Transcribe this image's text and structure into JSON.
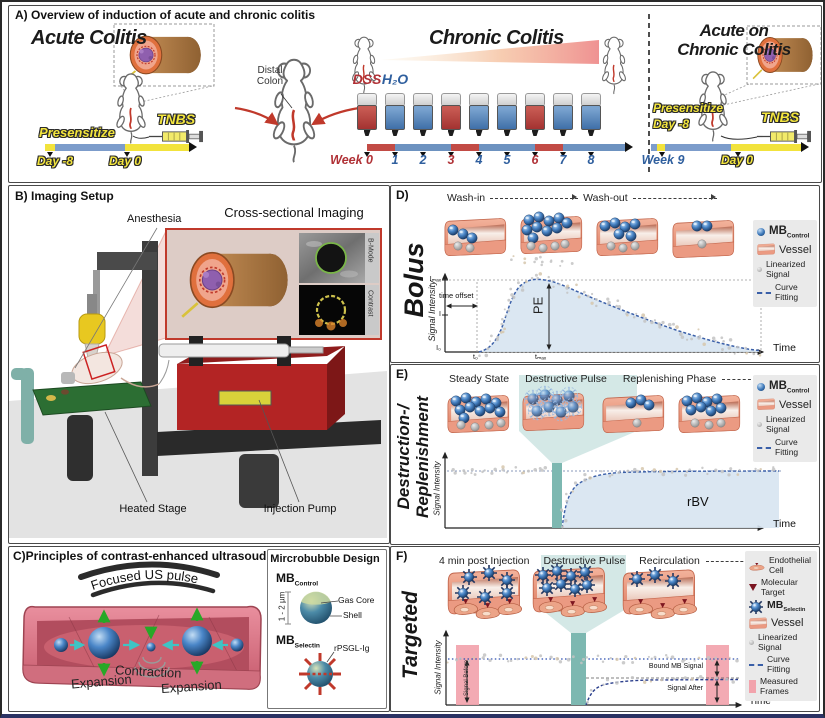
{
  "colors": {
    "dss_red": "#b13a38",
    "water_blue": "#4d7fb3",
    "timeline_yellow": "#f2e33c",
    "vessel_salmon": "#e89179",
    "microbubble_blue": "#2f6bb0",
    "pulse_teal": "#8fc3bd",
    "curve_blue": "#3a5fa8",
    "fill_blue": "#d7e4f1",
    "measured_pink": "#f2a3ac",
    "legend_gray": "#eaeaea"
  },
  "panelA": {
    "title": "A) Overview of induction of acute and chronic colitis",
    "acute": {
      "title": "Acute Colitis",
      "presensitize": "Presensitize",
      "day_minus_8": "Day -8",
      "day_0": "Day 0",
      "tnbs": "TNBS"
    },
    "distal_colon": "Distal Colon",
    "chronic": {
      "title": "Chronic Colitis",
      "dss": "DSS",
      "h2o": "H₂O",
      "weeks": [
        {
          "label": "Week 0",
          "liquid": "DSS"
        },
        {
          "label": "1",
          "liquid": "H2O"
        },
        {
          "label": "2",
          "liquid": "H2O"
        },
        {
          "label": "3",
          "liquid": "DSS"
        },
        {
          "label": "4",
          "liquid": "H2O"
        },
        {
          "label": "5",
          "liquid": "H2O"
        },
        {
          "label": "6",
          "liquid": "DSS"
        },
        {
          "label": "7",
          "liquid": "H2O"
        },
        {
          "label": "8",
          "liquid": "H2O"
        }
      ]
    },
    "acute_on_chronic": {
      "title_line1": "Acute on",
      "title_line2": "Chronic Colitis",
      "presensitize": "Presensitize",
      "day_minus_8": "Day -8",
      "tnbs": "T­NBS",
      "week_9": "Week 9",
      "day_0": "Day 0"
    }
  },
  "panelB": {
    "title": "B) Imaging Setup",
    "anesthesia": "Anesthesia",
    "cross_sectional_imaging": "Cross-sectional Imaging",
    "b_mode": "B-Mode",
    "contrast": "Contrast",
    "heated_stage": "Heated Stage",
    "injection_pump": "Injection Pump"
  },
  "panelC": {
    "title": "C)Principles of contrast-enhanced ultrasoud",
    "focused_us_pulse": "Focused US pulse",
    "contraction": "Contraction",
    "expansion_left": "Expansion",
    "expansion_right": "Expansion",
    "microbubble_design": {
      "title": "Mircrobubble Design",
      "mb": "MB",
      "control_sub": "Control",
      "selectin_sub": "Selectin",
      "size": "1 - 2 µm",
      "gas_core": "Gas Core",
      "shell": "Shell",
      "rpsgl_ig": "rPSGL-Ig"
    }
  },
  "panelD": {
    "label": "D)",
    "rotated_title": "Bolus",
    "wash_in": "Wash-in",
    "wash_out": "Wash-out",
    "y_axis": "Signal Intensity",
    "x_axis": "Time",
    "time_offset": "time offset",
    "pe": "PE",
    "y_tick_max": "Iₘₐₓ",
    "y_tick_mid": "I",
    "y_tick_min": "I₀",
    "x_tick_0": "t₀",
    "x_tick_max": "tₘₐₓ",
    "legend": {
      "mb": "MB",
      "mb_sub": "Control",
      "vessel": "Vessel",
      "linearized_signal": "Linearized Signal",
      "curve_fitting": "Curve Fitting"
    }
  },
  "panelE": {
    "label": "E)",
    "rotated_title_line1": "Destruction-/",
    "rotated_title_line2": "Replenishment",
    "steady_state": "Steady State",
    "destructive_pulse": "Destructive Pulse",
    "replenishing_phase": "Replenishing Phase",
    "y_axis": "Signal Intensity",
    "x_axis": "Time",
    "rbv": "rBV",
    "legend": {
      "mb": "MB",
      "mb_sub": "Control",
      "vessel": "Vessel",
      "linearized_signal": "Linearized Signal",
      "curve_fitting": "Curve Fitting"
    }
  },
  "panelF": {
    "label": "F)",
    "rotated_title": "Targeted",
    "post_injection": "4 min post Injection",
    "destructive_pulse": "Destructive Pulse",
    "recirculation": "Recirculation",
    "y_axis": "Signal Intensity",
    "x_axis": "Time",
    "signal_before": "Signal Before",
    "bound_mb_signal": "Bound MB Signal",
    "signal_after": "Signal After",
    "legend": {
      "endothelial_cell": "Endothelial Cell",
      "molecular_target": "Molecular Target",
      "mb": "MB",
      "mb_sub": "Selectin",
      "vessel": "Vessel",
      "linearized_signal": "Linearized Signal",
      "curve_fitting": "Curve Fitting",
      "measured_frames": "Measured Frames"
    }
  }
}
